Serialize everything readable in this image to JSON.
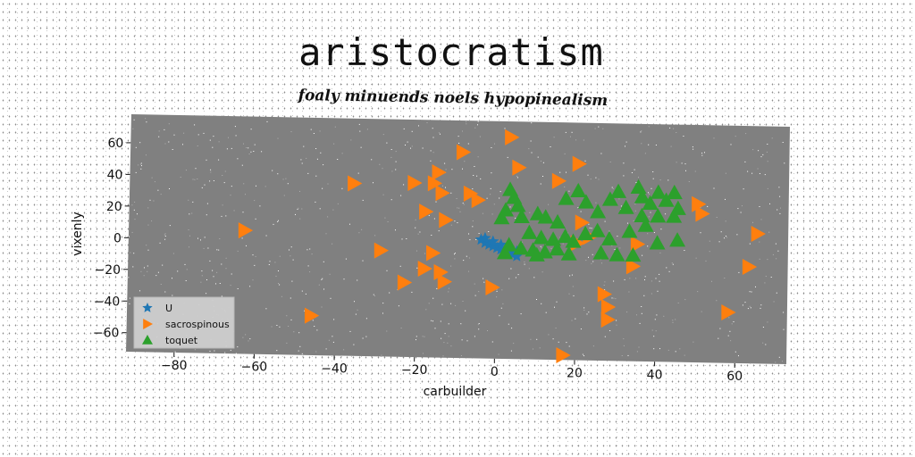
{
  "chart_data": {
    "type": "scatter",
    "title": "aristocratism",
    "subtitle": "foaly minuends noels hypopinealism",
    "xlabel": "carbuilder",
    "ylabel": "vixenly",
    "xlim": [
      -92,
      72
    ],
    "ylim": [
      -72,
      78
    ],
    "xticks": [
      -80,
      -60,
      -40,
      -20,
      0,
      20,
      40,
      60
    ],
    "yticks": [
      -60,
      -40,
      -20,
      0,
      20,
      40,
      60
    ],
    "grid": false,
    "legend_position": "lower-left",
    "series": [
      {
        "name": "U",
        "marker": "star",
        "color": "#1f77b4",
        "points": [
          [
            -4,
            3
          ],
          [
            -3,
            1
          ],
          [
            -2,
            0
          ],
          [
            -1,
            -1
          ],
          [
            0,
            -2
          ],
          [
            1,
            -3
          ],
          [
            2,
            -4
          ],
          [
            3,
            -5
          ],
          [
            4,
            -6
          ],
          [
            5,
            -7
          ],
          [
            -3,
            4
          ],
          [
            -1,
            2
          ],
          [
            1,
            0
          ],
          [
            3,
            -2
          ],
          [
            5,
            -4
          ]
        ]
      },
      {
        "name": "sacrospinous",
        "marker": "triangle-right",
        "color": "#ff7f0e",
        "points": [
          [
            3,
            68
          ],
          [
            5,
            49
          ],
          [
            20,
            52
          ],
          [
            -9,
            58
          ],
          [
            -15,
            45
          ],
          [
            -16,
            38
          ],
          [
            -14,
            32
          ],
          [
            -21,
            38
          ],
          [
            -36,
            37
          ],
          [
            -7,
            32
          ],
          [
            -5,
            28
          ],
          [
            -18,
            20
          ],
          [
            -13,
            15
          ],
          [
            -63,
            6
          ],
          [
            15,
            41
          ],
          [
            21,
            15
          ],
          [
            23,
            6
          ],
          [
            35,
            2
          ],
          [
            34,
            -12
          ],
          [
            20,
            2
          ],
          [
            50,
            28
          ],
          [
            51,
            22
          ],
          [
            65,
            10
          ],
          [
            63,
            -11
          ],
          [
            58,
            -40
          ],
          [
            -29,
            -5
          ],
          [
            -16,
            -6
          ],
          [
            -18,
            -16
          ],
          [
            -14,
            -18
          ],
          [
            -23,
            -25
          ],
          [
            -13,
            -24
          ],
          [
            -1,
            -27
          ],
          [
            27,
            -30
          ],
          [
            28,
            -38
          ],
          [
            28,
            -46
          ],
          [
            -46,
            -47
          ],
          [
            17,
            -69
          ]
        ]
      },
      {
        "name": "toquet",
        "marker": "triangle-up",
        "color": "#2ca02c",
        "points": [
          [
            3,
            35
          ],
          [
            4,
            30
          ],
          [
            5,
            25
          ],
          [
            2,
            22
          ],
          [
            6,
            18
          ],
          [
            1,
            17
          ],
          [
            10,
            20
          ],
          [
            12,
            18
          ],
          [
            15,
            15
          ],
          [
            17,
            30
          ],
          [
            20,
            35
          ],
          [
            22,
            28
          ],
          [
            25,
            22
          ],
          [
            28,
            30
          ],
          [
            30,
            35
          ],
          [
            32,
            25
          ],
          [
            35,
            38
          ],
          [
            36,
            32
          ],
          [
            38,
            28
          ],
          [
            40,
            35
          ],
          [
            42,
            30
          ],
          [
            44,
            35
          ],
          [
            45,
            25
          ],
          [
            36,
            20
          ],
          [
            40,
            20
          ],
          [
            44,
            20
          ],
          [
            8,
            8
          ],
          [
            11,
            5
          ],
          [
            14,
            4
          ],
          [
            17,
            6
          ],
          [
            19,
            3
          ],
          [
            22,
            8
          ],
          [
            25,
            10
          ],
          [
            28,
            5
          ],
          [
            33,
            10
          ],
          [
            37,
            14
          ],
          [
            40,
            3
          ],
          [
            45,
            5
          ],
          [
            3,
            0
          ],
          [
            6,
            -2
          ],
          [
            9,
            -3
          ],
          [
            12,
            -4
          ],
          [
            15,
            -2
          ],
          [
            18,
            -5
          ],
          [
            2,
            -5
          ],
          [
            10,
            -6
          ],
          [
            26,
            -4
          ],
          [
            30,
            -5
          ],
          [
            34,
            -5
          ]
        ]
      }
    ]
  }
}
